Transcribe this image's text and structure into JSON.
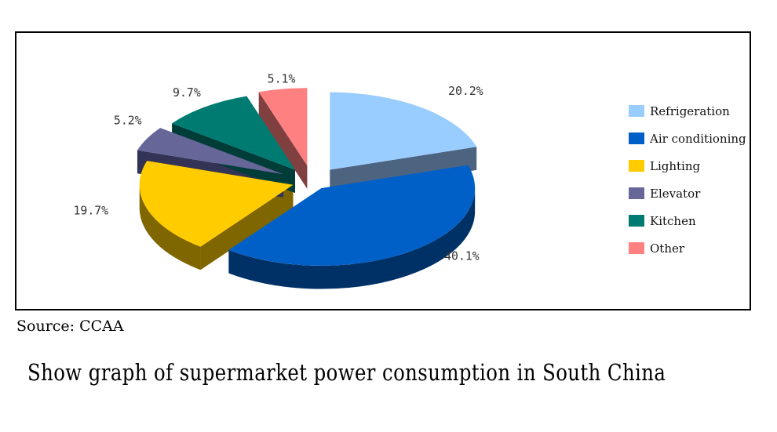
{
  "chart_data": {
    "type": "pie",
    "style": "3d-exploded",
    "categories": [
      "Refrigeration",
      "Air conditioning",
      "Lighting",
      "Elevator",
      "Kitchen",
      "Other"
    ],
    "values": [
      20.2,
      40.1,
      19.7,
      5.2,
      9.7,
      5.1
    ],
    "value_labels": [
      "20.2%",
      "40.1%",
      "19.7%",
      "5.2%",
      "9.7%",
      "5.1%"
    ],
    "colors": [
      "#99ccff",
      "#0060c8",
      "#ffcc00",
      "#666699",
      "#007b72",
      "#ff8080"
    ],
    "side_colors": [
      "#4d6480",
      "#003166",
      "#806600",
      "#333355",
      "#003d39",
      "#804040"
    ],
    "legend_position": "right"
  },
  "source": "Source: CCAA",
  "caption": "Show graph of supermarket power consumption in South China"
}
